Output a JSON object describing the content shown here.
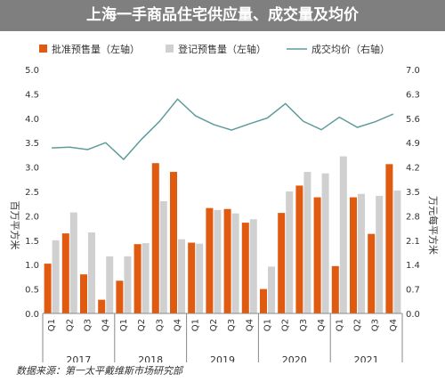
{
  "title": "上海一手商品住宅供应量、成交量及均价",
  "source": "数据来源：第一太平戴维斯市场研究部",
  "chart_data": {
    "type": "bar",
    "categories": [
      "Q1",
      "Q2",
      "Q3",
      "Q4",
      "Q1",
      "Q2",
      "Q3",
      "Q4",
      "Q1",
      "Q2",
      "Q3",
      "Q4",
      "Q1",
      "Q2",
      "Q3",
      "Q4",
      "Q1",
      "Q2",
      "Q3",
      "Q4"
    ],
    "years": [
      "2017",
      "2018",
      "2019",
      "2020",
      "2021"
    ],
    "y_left": {
      "label": "百万平方米",
      "ticks": [
        "0.0",
        "0.5",
        "1.0",
        "1.5",
        "2.0",
        "2.5",
        "3.0",
        "3.5",
        "4.0",
        "4.5",
        "5.0"
      ],
      "range": [
        0,
        5.0
      ]
    },
    "y_right": {
      "label": "万元每平方米",
      "ticks": [
        "0.0",
        "0.7",
        "1.4",
        "2.1",
        "2.8",
        "3.5",
        "4.2",
        "4.9",
        "5.6",
        "6.3",
        "7.0"
      ],
      "range": [
        0,
        7.0
      ]
    },
    "series": [
      {
        "name": "批准预售量（左轴）",
        "type": "bar",
        "color": "#e05a10",
        "axis": "left",
        "values": [
          1.02,
          1.64,
          0.8,
          0.28,
          0.67,
          1.42,
          3.08,
          2.9,
          1.45,
          2.16,
          2.14,
          1.86,
          0.5,
          2.06,
          2.62,
          2.38,
          0.97,
          2.38,
          1.63,
          3.06
        ]
      },
      {
        "name": "登记预售量（左轴）",
        "type": "bar",
        "color": "#d0d0d0",
        "axis": "left",
        "values": [
          1.5,
          2.07,
          1.66,
          1.17,
          1.17,
          1.44,
          2.3,
          1.52,
          1.43,
          2.12,
          2.05,
          1.93,
          0.96,
          2.5,
          2.9,
          2.87,
          3.22,
          2.45,
          2.41,
          2.52
        ]
      },
      {
        "name": "成交均价（右轴）",
        "type": "line",
        "color": "#5f9c9a",
        "axis": "right",
        "values": [
          4.75,
          4.77,
          4.7,
          4.9,
          4.42,
          5.0,
          5.51,
          6.15,
          5.67,
          5.42,
          5.26,
          5.44,
          5.61,
          6.02,
          5.51,
          5.27,
          5.63,
          5.34,
          5.5,
          5.72
        ]
      }
    ],
    "grid": false,
    "legend": "top"
  }
}
